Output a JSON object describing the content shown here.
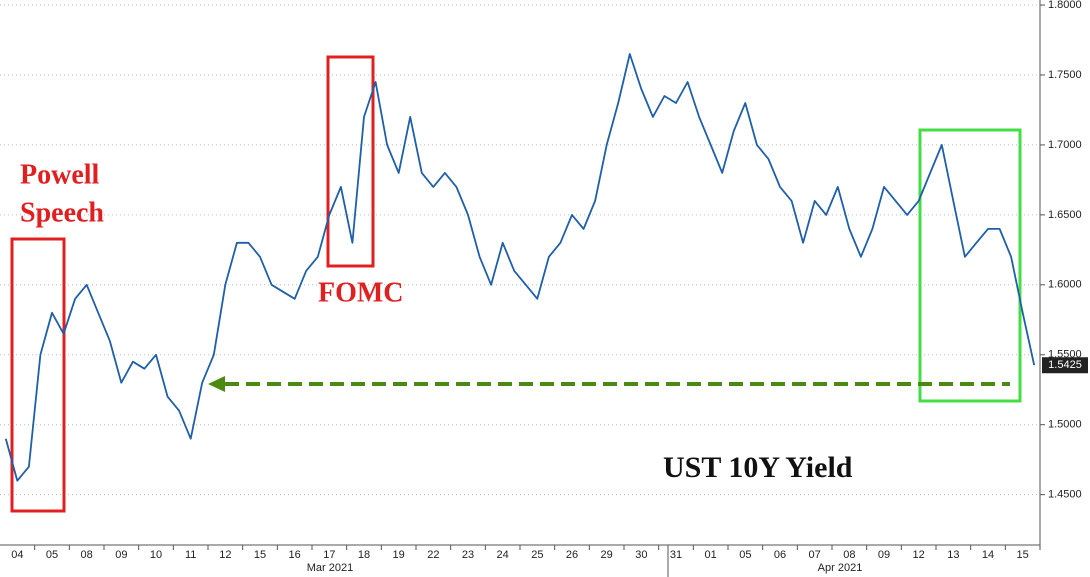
{
  "chart_data": {
    "type": "line",
    "categories": [
      null,
      "04",
      null,
      null,
      "05",
      null,
      null,
      "08",
      null,
      null,
      "09",
      null,
      null,
      "10",
      null,
      null,
      "11",
      null,
      null,
      "12",
      null,
      null,
      "15",
      null,
      null,
      "16",
      null,
      null,
      "17",
      null,
      null,
      "18",
      null,
      null,
      "19",
      null,
      null,
      "22",
      null,
      null,
      "23",
      null,
      null,
      "24",
      null,
      null,
      "25",
      null,
      null,
      "26",
      null,
      null,
      "29",
      null,
      null,
      "30",
      null,
      null,
      "31",
      null,
      null,
      "01",
      null,
      null,
      "05",
      null,
      null,
      "06",
      null,
      null,
      "07",
      null,
      null,
      "08",
      null,
      null,
      "09",
      null,
      null,
      "12",
      null,
      null,
      "13",
      null,
      null,
      "14",
      null,
      null,
      "15",
      null
    ],
    "x_group_labels": [
      "Mar 2021",
      "Apr 2021"
    ],
    "series": [
      {
        "name": "UST 10Y Yield",
        "color": "#1f5fa8",
        "values": [
          1.49,
          1.46,
          1.47,
          1.55,
          1.58,
          1.565,
          1.59,
          1.6,
          1.58,
          1.56,
          1.53,
          1.545,
          1.54,
          1.55,
          1.52,
          1.51,
          1.49,
          1.53,
          1.55,
          1.6,
          1.63,
          1.63,
          1.62,
          1.6,
          1.595,
          1.59,
          1.61,
          1.62,
          1.65,
          1.67,
          1.63,
          1.72,
          1.745,
          1.7,
          1.68,
          1.72,
          1.68,
          1.67,
          1.68,
          1.67,
          1.65,
          1.62,
          1.6,
          1.63,
          1.61,
          1.6,
          1.59,
          1.62,
          1.63,
          1.65,
          1.64,
          1.66,
          1.7,
          1.73,
          1.765,
          1.74,
          1.72,
          1.735,
          1.73,
          1.745,
          1.72,
          1.7,
          1.68,
          1.71,
          1.73,
          1.7,
          1.69,
          1.67,
          1.66,
          1.63,
          1.66,
          1.65,
          1.67,
          1.64,
          1.62,
          1.64,
          1.67,
          1.66,
          1.65,
          1.66,
          1.68,
          1.7,
          1.66,
          1.62,
          1.63,
          1.64,
          1.64,
          1.62,
          1.58,
          1.5425
        ]
      }
    ],
    "ylim": [
      1.414,
      1.8036
    ],
    "yticks": [
      {
        "value": 1.45,
        "label": "1.4500"
      },
      {
        "value": 1.5,
        "label": "1.5000"
      },
      {
        "value": 1.55,
        "label": "1.5500"
      },
      {
        "value": 1.6,
        "label": "1.6000"
      },
      {
        "value": 1.65,
        "label": "1.6500"
      },
      {
        "value": 1.7,
        "label": "1.7000"
      },
      {
        "value": 1.75,
        "label": "1.7500"
      },
      {
        "value": 1.8,
        "label": "1.8000"
      }
    ],
    "grid": true,
    "annotations": [
      "Powell",
      "Speech",
      "FOMC",
      "UST 10Y Yield"
    ]
  }
}
